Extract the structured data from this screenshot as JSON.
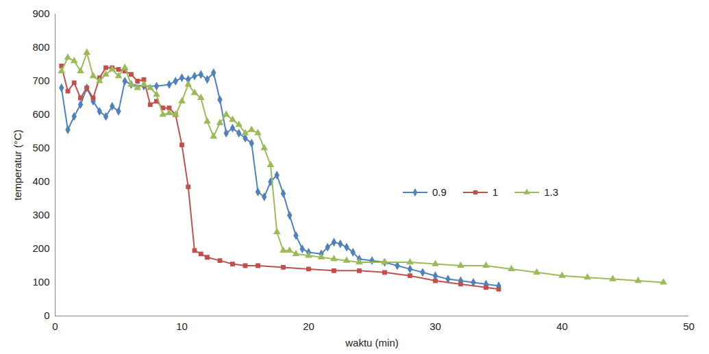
{
  "chart_data": {
    "type": "line",
    "x_label": "waktu (min)",
    "y_label": "temperatur (°C)",
    "xlim": [
      0,
      50
    ],
    "xticks": [
      0,
      10,
      20,
      30,
      40,
      50
    ],
    "ylim": [
      0,
      900
    ],
    "yticks": [
      0,
      100,
      200,
      300,
      400,
      500,
      600,
      700,
      800,
      900
    ],
    "grid": false,
    "legend": "right",
    "series": [
      {
        "name": "0.9",
        "color": "#4f81bd",
        "marker": "diamond",
        "line_style": "solid",
        "x": [
          0.5,
          1,
          1.5,
          2,
          2.5,
          3,
          3.5,
          4,
          4.5,
          5,
          5.5,
          6,
          7,
          8,
          9,
          9.5,
          10,
          10.5,
          11,
          11.5,
          12,
          12.5,
          13,
          13.5,
          14,
          14.5,
          15,
          15.5,
          16,
          16.5,
          17,
          17.5,
          18,
          18.5,
          19,
          19.5,
          20,
          21,
          21.5,
          22,
          22.5,
          23,
          23.5,
          24,
          25,
          26,
          27,
          28,
          29,
          30,
          31,
          32,
          33,
          34,
          35
        ],
        "values": [
          680,
          555,
          595,
          630,
          680,
          640,
          610,
          595,
          625,
          610,
          700,
          690,
          685,
          685,
          690,
          700,
          710,
          705,
          715,
          720,
          705,
          725,
          645,
          545,
          560,
          545,
          530,
          515,
          370,
          355,
          400,
          420,
          365,
          300,
          240,
          200,
          190,
          185,
          205,
          220,
          215,
          205,
          190,
          170,
          165,
          160,
          150,
          140,
          130,
          120,
          110,
          105,
          100,
          95,
          90
        ]
      },
      {
        "name": "1",
        "color": "#c0504d",
        "marker": "square",
        "line_style": "solid",
        "x": [
          0.5,
          1,
          1.5,
          2,
          2.5,
          3,
          3.5,
          4,
          4.5,
          5,
          5.5,
          6,
          6.5,
          7,
          7.5,
          8,
          8.5,
          9,
          9.5,
          10,
          10.5,
          11,
          11.5,
          12,
          13,
          14,
          15,
          16,
          18,
          20,
          22,
          24,
          26,
          28,
          30,
          32,
          34,
          35
        ],
        "values": [
          745,
          670,
          695,
          650,
          680,
          650,
          710,
          740,
          740,
          735,
          730,
          720,
          700,
          705,
          630,
          640,
          620,
          620,
          600,
          510,
          385,
          195,
          185,
          175,
          165,
          155,
          150,
          150,
          145,
          140,
          135,
          135,
          130,
          120,
          105,
          95,
          85,
          80
        ]
      },
      {
        "name": "1.3",
        "color": "#9bbb59",
        "marker": "triangle",
        "line_style": "solid",
        "x": [
          0.5,
          1,
          1.5,
          2,
          2.5,
          3,
          3.5,
          4,
          4.5,
          5,
          5.5,
          6,
          6.5,
          7,
          7.5,
          8,
          8.5,
          9,
          9.5,
          10,
          10.5,
          11,
          11.5,
          12,
          12.5,
          13,
          13.5,
          14,
          14.5,
          15,
          15.5,
          16,
          16.5,
          17,
          17.5,
          18,
          18.5,
          19,
          20,
          21,
          22,
          23,
          24,
          26,
          28,
          30,
          32,
          34,
          36,
          38,
          40,
          42,
          44,
          46,
          48
        ],
        "values": [
          730,
          770,
          760,
          730,
          785,
          715,
          700,
          720,
          735,
          715,
          740,
          690,
          680,
          690,
          680,
          660,
          600,
          605,
          600,
          640,
          690,
          665,
          650,
          580,
          535,
          575,
          600,
          585,
          570,
          545,
          555,
          545,
          500,
          450,
          250,
          195,
          195,
          185,
          180,
          175,
          170,
          165,
          160,
          160,
          160,
          155,
          150,
          150,
          140,
          130,
          120,
          115,
          110,
          105,
          100
        ]
      }
    ]
  }
}
